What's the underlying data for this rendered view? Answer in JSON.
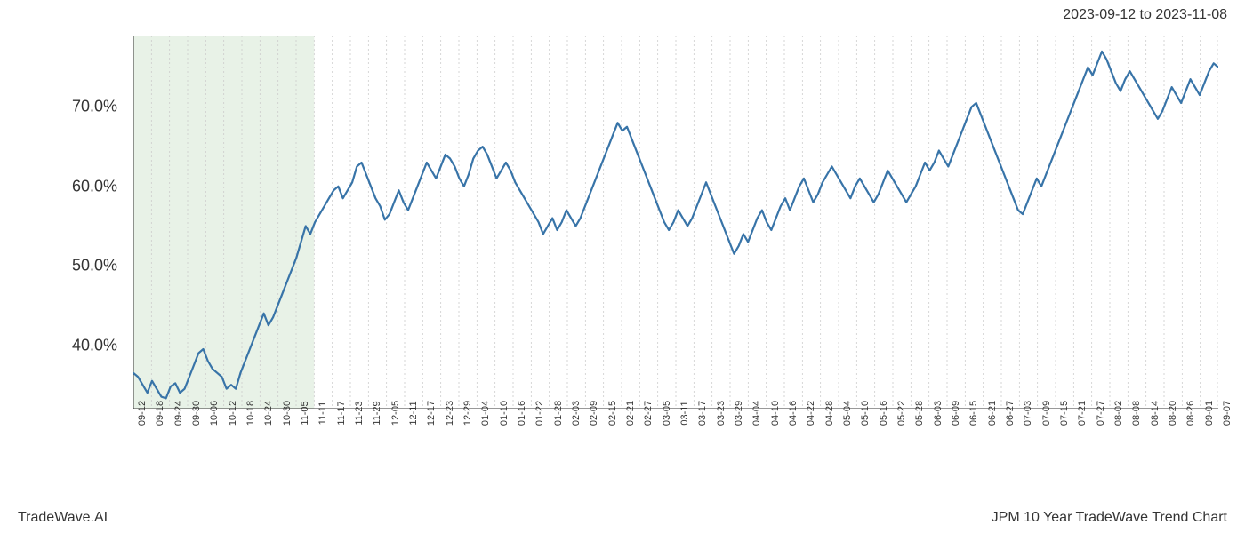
{
  "header": {
    "date_range": "2023-09-12 to 2023-11-08"
  },
  "footer": {
    "brand": "TradeWave.AI",
    "title": "JPM 10 Year TradeWave Trend Chart"
  },
  "chart": {
    "type": "line",
    "line_color": "#3874a8",
    "line_width": 2.2,
    "background_color": "#ffffff",
    "grid_color": "#cccccc",
    "grid_dash": "2,3",
    "highlight_band": {
      "fill": "#d5e8d4",
      "opacity": 0.55,
      "x_start_index": 0,
      "x_end_index": 10
    },
    "y_axis": {
      "min": 32,
      "max": 79,
      "ticks": [
        40.0,
        50.0,
        60.0,
        70.0
      ],
      "tick_labels": [
        "40.0%",
        "50.0%",
        "60.0%",
        "70.0%"
      ],
      "label_fontsize": 18
    },
    "x_axis": {
      "labels": [
        "09-12",
        "09-18",
        "09-24",
        "09-30",
        "10-06",
        "10-12",
        "10-18",
        "10-24",
        "10-30",
        "11-05",
        "11-11",
        "11-17",
        "11-23",
        "11-29",
        "12-05",
        "12-11",
        "12-17",
        "12-23",
        "12-29",
        "01-04",
        "01-10",
        "01-16",
        "01-22",
        "01-28",
        "02-03",
        "02-09",
        "02-15",
        "02-21",
        "02-27",
        "03-05",
        "03-11",
        "03-17",
        "03-23",
        "03-29",
        "04-04",
        "04-10",
        "04-16",
        "04-22",
        "04-28",
        "05-04",
        "05-10",
        "05-16",
        "05-22",
        "05-28",
        "06-03",
        "06-09",
        "06-15",
        "06-21",
        "06-27",
        "07-03",
        "07-09",
        "07-15",
        "07-21",
        "07-27",
        "08-02",
        "08-08",
        "08-14",
        "08-20",
        "08-26",
        "09-01",
        "09-07"
      ],
      "label_fontsize": 11,
      "rotation": 90
    },
    "series": [
      36.5,
      36.0,
      35.0,
      34.0,
      35.5,
      34.5,
      33.5,
      33.3,
      34.8,
      35.2,
      34.0,
      34.5,
      36.0,
      37.5,
      39.0,
      39.5,
      38.0,
      37.0,
      36.5,
      36.0,
      34.5,
      35.0,
      34.5,
      36.5,
      38.0,
      39.5,
      41.0,
      42.5,
      44.0,
      42.5,
      43.5,
      45.0,
      46.5,
      48.0,
      49.5,
      51.0,
      53.0,
      55.0,
      54.0,
      55.5,
      56.5,
      57.5,
      58.5,
      59.5,
      60.0,
      58.5,
      59.5,
      60.5,
      62.5,
      63.0,
      61.5,
      60.0,
      58.5,
      57.5,
      55.8,
      56.5,
      58.0,
      59.5,
      58.0,
      57.0,
      58.5,
      60.0,
      61.5,
      63.0,
      62.0,
      61.0,
      62.5,
      64.0,
      63.5,
      62.5,
      61.0,
      60.0,
      61.5,
      63.5,
      64.5,
      65.0,
      64.0,
      62.5,
      61.0,
      62.0,
      63.0,
      62.0,
      60.5,
      59.5,
      58.5,
      57.5,
      56.5,
      55.5,
      54.0,
      55.0,
      56.0,
      54.5,
      55.5,
      57.0,
      56.0,
      55.0,
      56.0,
      57.5,
      59.0,
      60.5,
      62.0,
      63.5,
      65.0,
      66.5,
      68.0,
      67.0,
      67.5,
      66.0,
      64.5,
      63.0,
      61.5,
      60.0,
      58.5,
      57.0,
      55.5,
      54.5,
      55.5,
      57.0,
      56.0,
      55.0,
      56.0,
      57.5,
      59.0,
      60.5,
      59.0,
      57.5,
      56.0,
      54.5,
      53.0,
      51.5,
      52.5,
      54.0,
      53.0,
      54.5,
      56.0,
      57.0,
      55.5,
      54.5,
      56.0,
      57.5,
      58.5,
      57.0,
      58.5,
      60.0,
      61.0,
      59.5,
      58.0,
      59.0,
      60.5,
      61.5,
      62.5,
      61.5,
      60.5,
      59.5,
      58.5,
      60.0,
      61.0,
      60.0,
      59.0,
      58.0,
      59.0,
      60.5,
      62.0,
      61.0,
      60.0,
      59.0,
      58.0,
      59.0,
      60.0,
      61.5,
      63.0,
      62.0,
      63.0,
      64.5,
      63.5,
      62.5,
      64.0,
      65.5,
      67.0,
      68.5,
      70.0,
      70.5,
      69.0,
      67.5,
      66.0,
      64.5,
      63.0,
      61.5,
      60.0,
      58.5,
      57.0,
      56.5,
      58.0,
      59.5,
      61.0,
      60.0,
      61.5,
      63.0,
      64.5,
      66.0,
      67.5,
      69.0,
      70.5,
      72.0,
      73.5,
      75.0,
      74.0,
      75.5,
      77.0,
      76.0,
      74.5,
      73.0,
      72.0,
      73.5,
      74.5,
      73.5,
      72.5,
      71.5,
      70.5,
      69.5,
      68.5,
      69.5,
      71.0,
      72.5,
      71.5,
      70.5,
      72.0,
      73.5,
      72.5,
      71.5,
      73.0,
      74.5,
      75.5,
      75.0
    ]
  }
}
